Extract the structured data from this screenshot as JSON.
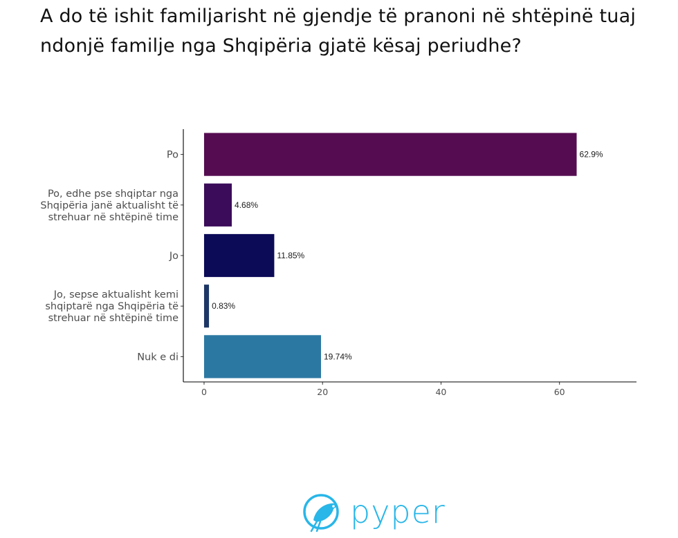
{
  "title": "A do të ishit familjarisht në gjendje të pranoni në shtëpinë tuaj ndonjë familje nga Shqipëria gjatë kësaj periudhe?",
  "chart_data": {
    "type": "bar",
    "orientation": "horizontal",
    "title": "A do të ishit familjarisht në gjendje të pranoni në shtëpinë tuaj ndonjë familje nga Shqipëria gjatë kësaj periudhe?",
    "categories": [
      [
        "Po"
      ],
      [
        "Po, edhe pse shqiptar nga",
        "Shqipëria janë aktualisht të",
        "strehuar në shtëpinë time"
      ],
      [
        "Jo"
      ],
      [
        "Jo, sepse aktualisht kemi",
        "shqiptarë nga Shqipëria të",
        "strehuar në shtëpinë time"
      ],
      [
        "Nuk e di"
      ]
    ],
    "values": [
      62.9,
      4.68,
      11.85,
      0.83,
      19.74
    ],
    "value_labels": [
      "62.9%",
      "4.68%",
      "11.85%",
      "0.83%",
      "19.74%"
    ],
    "colors": [
      "#560c51",
      "#3b0c5a",
      "#0c0b58",
      "#1c3765",
      "#2b78a2"
    ],
    "x_ticks": [
      0,
      20,
      40,
      60
    ],
    "xlim": [
      -3.5,
      73
    ],
    "xlabel": "",
    "ylabel": "",
    "grid": false,
    "legend": "none"
  },
  "logo": {
    "text": "pyper",
    "color": "#29b6e8"
  }
}
